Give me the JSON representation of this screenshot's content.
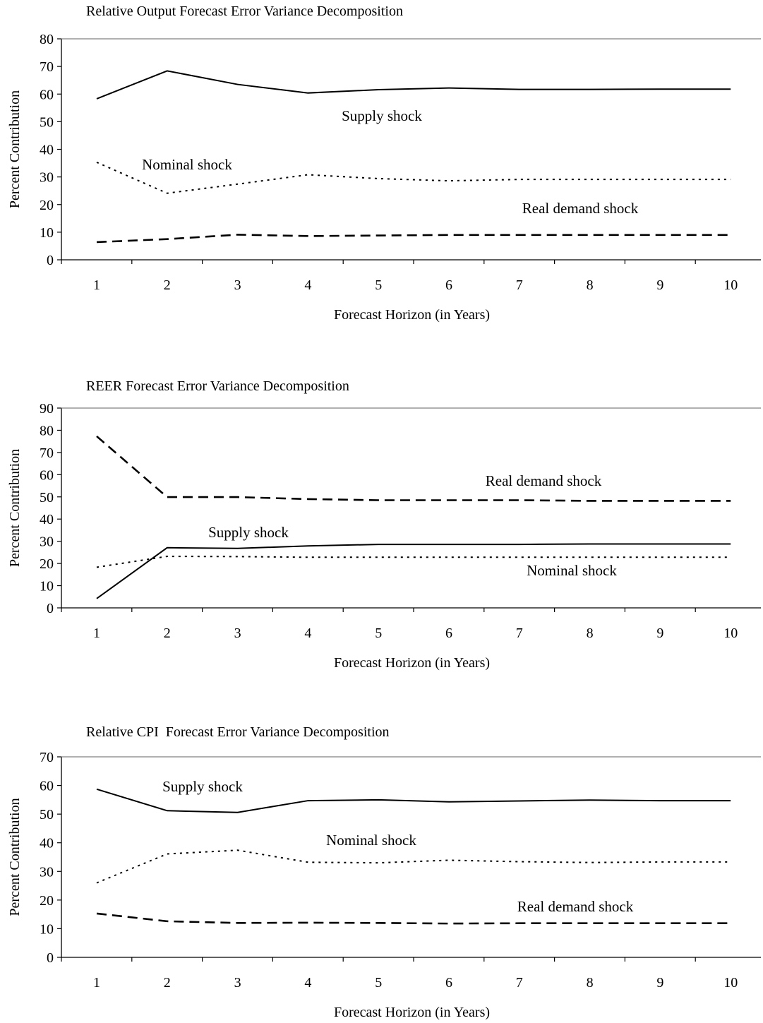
{
  "chart_data": [
    {
      "type": "line",
      "title": "Relative Output Forecast Error Variance Decomposition",
      "xlabel": "Forecast Horizon (in Years)",
      "ylabel": "Percent Contribution",
      "x": [
        1,
        2,
        3,
        4,
        5,
        6,
        7,
        8,
        9,
        10
      ],
      "ylim": [
        0,
        80
      ],
      "yticks": [
        0,
        10,
        20,
        30,
        40,
        50,
        60,
        70,
        80
      ],
      "grid": false,
      "series": [
        {
          "name": "Supply shock",
          "style": "solid",
          "values": [
            58.3,
            68.4,
            63.5,
            60.4,
            61.6,
            62.2,
            61.7,
            61.7,
            61.8,
            61.8
          ]
        },
        {
          "name": "Nominal shock",
          "style": "dotted",
          "values": [
            35.3,
            24.1,
            27.4,
            30.8,
            29.4,
            28.6,
            29.1,
            29.1,
            29.1,
            29.1
          ]
        },
        {
          "name": "Real demand shock",
          "style": "dashed",
          "values": [
            6.4,
            7.5,
            9.1,
            8.6,
            8.8,
            9.0,
            9.0,
            9.0,
            9.0,
            9.0
          ]
        }
      ]
    },
    {
      "type": "line",
      "title": "REER Forecast Error Variance Decomposition",
      "xlabel": "Forecast Horizon (in Years)",
      "ylabel": "Percent Contribution",
      "x": [
        1,
        2,
        3,
        4,
        5,
        6,
        7,
        8,
        9,
        10
      ],
      "ylim": [
        0,
        90
      ],
      "yticks": [
        0,
        10,
        20,
        30,
        40,
        50,
        60,
        70,
        80,
        90
      ],
      "grid": false,
      "series": [
        {
          "name": "Real demand shock",
          "style": "dashed",
          "values": [
            77.3,
            49.9,
            49.9,
            49.0,
            48.5,
            48.5,
            48.5,
            48.2,
            48.2,
            48.2
          ]
        },
        {
          "name": "Supply shock",
          "style": "solid",
          "values": [
            4.2,
            27.1,
            26.8,
            27.9,
            28.6,
            28.6,
            28.6,
            28.8,
            28.8,
            28.8
          ]
        },
        {
          "name": "Nominal shock",
          "style": "dotted",
          "values": [
            18.3,
            23.2,
            23.1,
            22.8,
            22.8,
            22.8,
            22.8,
            22.8,
            22.8,
            22.8
          ]
        }
      ]
    },
    {
      "type": "line",
      "title": "Relative CPI  Forecast Error Variance Decomposition",
      "xlabel": "Forecast Horizon (in Years)",
      "ylabel": "Percent Contribution",
      "x": [
        1,
        2,
        3,
        4,
        5,
        6,
        7,
        8,
        9,
        10
      ],
      "ylim": [
        0,
        70
      ],
      "yticks": [
        0,
        10,
        20,
        30,
        40,
        50,
        60,
        70
      ],
      "grid": false,
      "series": [
        {
          "name": "Supply shock",
          "style": "solid",
          "values": [
            58.7,
            51.2,
            50.6,
            54.7,
            55.0,
            54.3,
            54.6,
            54.9,
            54.7,
            54.7
          ]
        },
        {
          "name": "Nominal shock",
          "style": "dotted",
          "values": [
            26.0,
            36.1,
            37.4,
            33.2,
            33.0,
            33.9,
            33.4,
            33.1,
            33.3,
            33.3
          ]
        },
        {
          "name": "Real demand shock",
          "style": "dashed",
          "values": [
            15.3,
            12.6,
            12.0,
            12.1,
            12.0,
            11.8,
            11.9,
            11.9,
            11.9,
            11.9
          ]
        }
      ]
    }
  ]
}
